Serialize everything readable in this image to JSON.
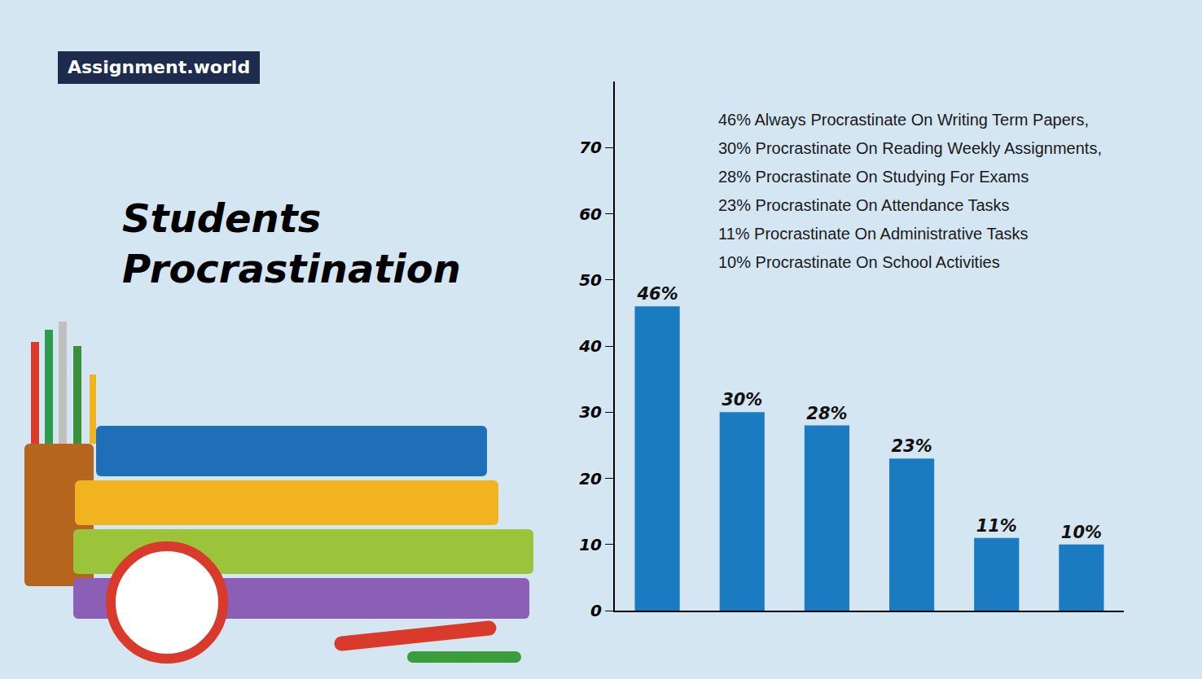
{
  "logo": "Assignment.world",
  "chart_data": {
    "type": "bar",
    "title": "Students Procrastination",
    "categories": [
      null,
      null,
      null,
      null,
      null,
      null
    ],
    "values": [
      46,
      30,
      28,
      23,
      11,
      10
    ],
    "value_labels": [
      "46%",
      "30%",
      "28%",
      "23%",
      "11%",
      "10%"
    ],
    "color": "#1a7bc0",
    "ylim": [
      0,
      80
    ],
    "yticks": [
      0,
      10,
      20,
      30,
      40,
      50,
      60,
      70
    ],
    "grid": false,
    "data_labels": true,
    "tick_labels": "y",
    "annotations": [
      "46% Always Procrastinate On Writing Term Papers,",
      "30% Procrastinate On Reading Weekly Assignments,",
      "28% Procrastinate On Studying For Exams",
      "23% Procrastinate On Attendance Tasks",
      "11% Procrastinate On Administrative Tasks",
      "10% Procrastinate On School Activities"
    ]
  }
}
